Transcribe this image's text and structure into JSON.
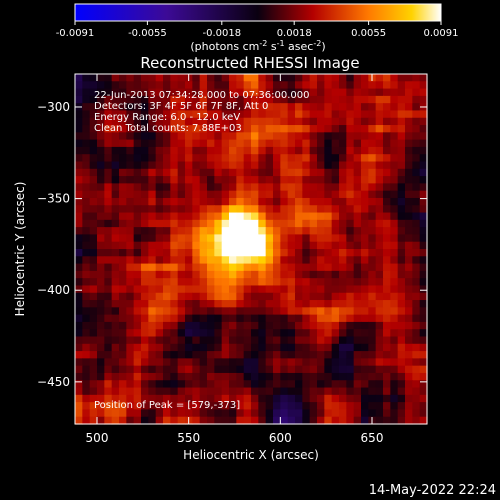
{
  "colorbar": {
    "tick_labels": [
      "-0.0091",
      "-0.0055",
      "-0.0018",
      "0.0018",
      "0.0055",
      "0.0091"
    ],
    "range": [
      -0.0091,
      0.0091
    ],
    "units_parts": [
      "(photons cm",
      "-2",
      " s",
      "-1",
      " asec",
      "-2",
      ")"
    ]
  },
  "chart_data": {
    "type": "heatmap",
    "title": "Reconstructed RHESSI Image",
    "xlabel": "Heliocentric X (arcsec)",
    "ylabel": "Heliocentric Y (arcsec)",
    "xlim": [
      488,
      680
    ],
    "ylim": [
      -473,
      -282
    ],
    "x_ticks": [
      500,
      550,
      600,
      650
    ],
    "y_ticks": [
      -300,
      -350,
      -400,
      -450
    ],
    "x_tick_labels": [
      "500",
      "550",
      "600",
      "650"
    ],
    "y_tick_labels": [
      "−300",
      "−350",
      "−400",
      "−450"
    ],
    "grid": false,
    "colormap": "blue-purple-red-orange-yellow-white (signed)",
    "peak": [
      579,
      -373
    ],
    "annotations": [
      "22-Jun-2013 07:34:28.000 to 07:36:00.000",
      "Detectors: 3F 4F 5F 6F 7F 8F, Att 0",
      "Energy Range: 6.0 - 12.0 keV",
      "Clean     Total counts: 7.88E+03"
    ],
    "peak_label": "Position of Peak = [579,-373]"
  },
  "footer": {
    "timestamp": "14-May-2022 22:24"
  },
  "colors": {
    "background": "#000000",
    "text": "#ffffff"
  }
}
